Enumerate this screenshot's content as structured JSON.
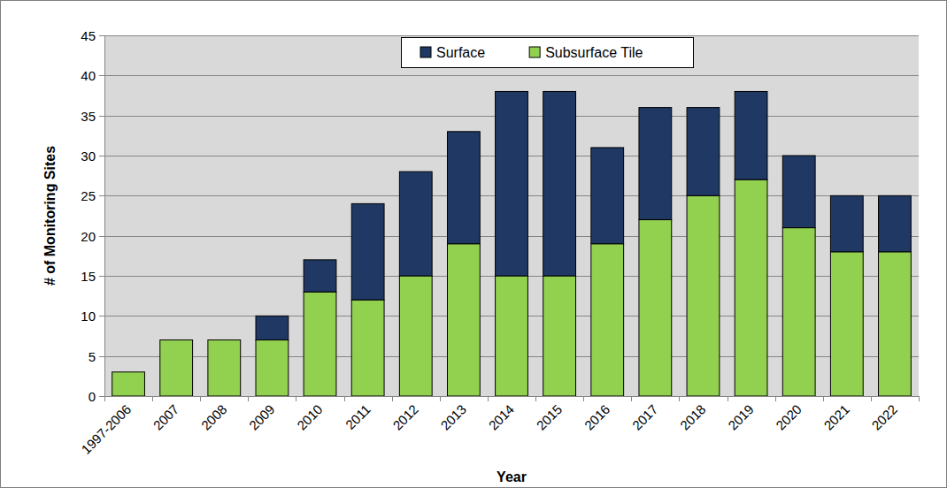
{
  "chart_data": {
    "type": "bar",
    "stacked": true,
    "grid": true,
    "legend": "top",
    "x_label": "Year",
    "y_label": "# of Monitoring Sites",
    "categories": [
      "1997-2006",
      "2007",
      "2008",
      "2009",
      "2010",
      "2011",
      "2012",
      "2013",
      "2014",
      "2015",
      "2016",
      "2017",
      "2018",
      "2019",
      "2020",
      "2021",
      "2022"
    ],
    "series": [
      {
        "name": "Subsurface Tile",
        "color": "#92d050",
        "values": [
          3,
          7,
          7,
          7,
          13,
          12,
          15,
          19,
          15,
          15,
          19,
          22,
          25,
          27,
          21,
          18,
          18
        ]
      },
      {
        "name": "Surface",
        "color": "#1f3864",
        "values": [
          0,
          0,
          0,
          3,
          4,
          12,
          13,
          14,
          23,
          23,
          12,
          14,
          11,
          11,
          9,
          7,
          7
        ]
      }
    ],
    "ylim": [
      0,
      45
    ],
    "yticks": [
      0,
      5,
      10,
      15,
      20,
      25,
      30,
      35,
      40,
      45
    ]
  }
}
